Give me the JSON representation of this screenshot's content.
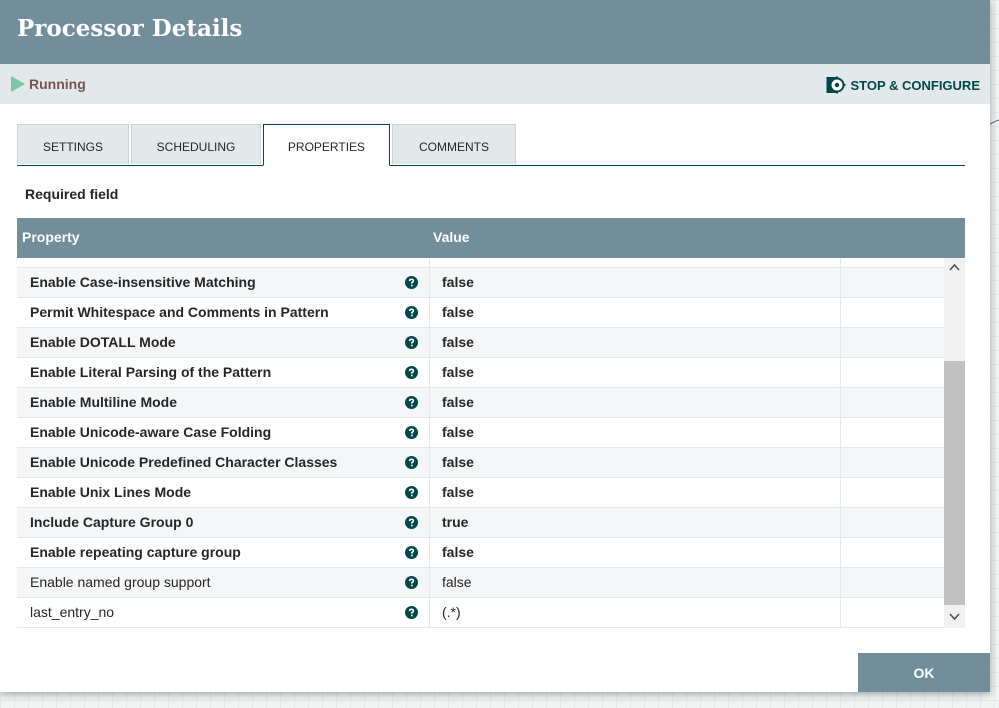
{
  "dialog": {
    "title": "Processor Details",
    "status": "Running",
    "stop_configure_label": "STOP & CONFIGURE"
  },
  "tabs": [
    {
      "label": "SETTINGS"
    },
    {
      "label": "SCHEDULING"
    },
    {
      "label": "PROPERTIES",
      "active": true
    },
    {
      "label": "COMMENTS"
    }
  ],
  "required_label": "Required field",
  "table": {
    "headers": {
      "property": "Property",
      "value": "Value"
    },
    "rows": [
      {
        "name": "Enable Case-insensitive Matching",
        "value": "false",
        "required": true
      },
      {
        "name": "Permit Whitespace and Comments in Pattern",
        "value": "false",
        "required": true
      },
      {
        "name": "Enable DOTALL Mode",
        "value": "false",
        "required": true
      },
      {
        "name": "Enable Literal Parsing of the Pattern",
        "value": "false",
        "required": true
      },
      {
        "name": "Enable Multiline Mode",
        "value": "false",
        "required": true
      },
      {
        "name": "Enable Unicode-aware Case Folding",
        "value": "false",
        "required": true
      },
      {
        "name": "Enable Unicode Predefined Character Classes",
        "value": "false",
        "required": true
      },
      {
        "name": "Enable Unix Lines Mode",
        "value": "false",
        "required": true
      },
      {
        "name": "Include Capture Group 0",
        "value": "true",
        "required": true
      },
      {
        "name": "Enable repeating capture group",
        "value": "false",
        "required": true
      },
      {
        "name": "Enable named group support",
        "value": "false",
        "required": false
      },
      {
        "name": "last_entry_no",
        "value": "(.*)",
        "required": false
      }
    ]
  },
  "ok_label": "OK",
  "colors": {
    "header": "#728e9b",
    "status_bg": "#e3e8eb",
    "running": "#7dc7a0",
    "accent": "#004849"
  },
  "icons": {
    "status": "play-icon",
    "stop_configure": "gear-stop-icon",
    "help": "question-circle-icon"
  }
}
